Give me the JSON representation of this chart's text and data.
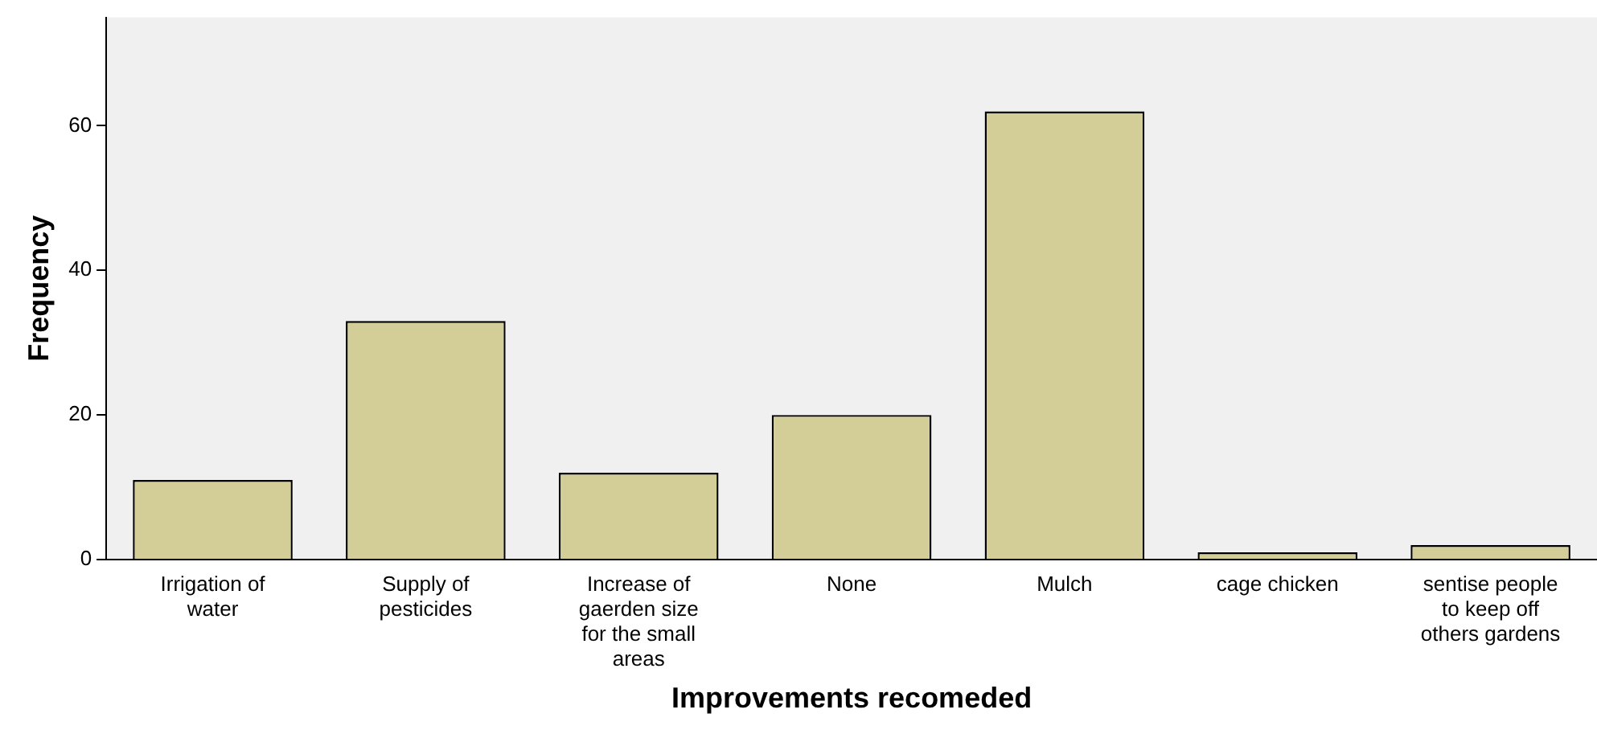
{
  "chart_data": {
    "type": "bar",
    "xlabel": "Improvements recomeded",
    "ylabel": "Frequency",
    "categories": [
      "Irrigation of water",
      "Supply of pesticides",
      "Increase of gaerden size for the small areas",
      "None",
      "Mulch",
      "cage chicken",
      "sentise people to keep off others gardens"
    ],
    "values": [
      11,
      33,
      12,
      20,
      62,
      1,
      2
    ],
    "color": "#d3ce97",
    "ylim": [
      0,
      75
    ],
    "yticks": [
      0,
      20,
      40,
      60
    ],
    "grid": false,
    "legend": false
  }
}
